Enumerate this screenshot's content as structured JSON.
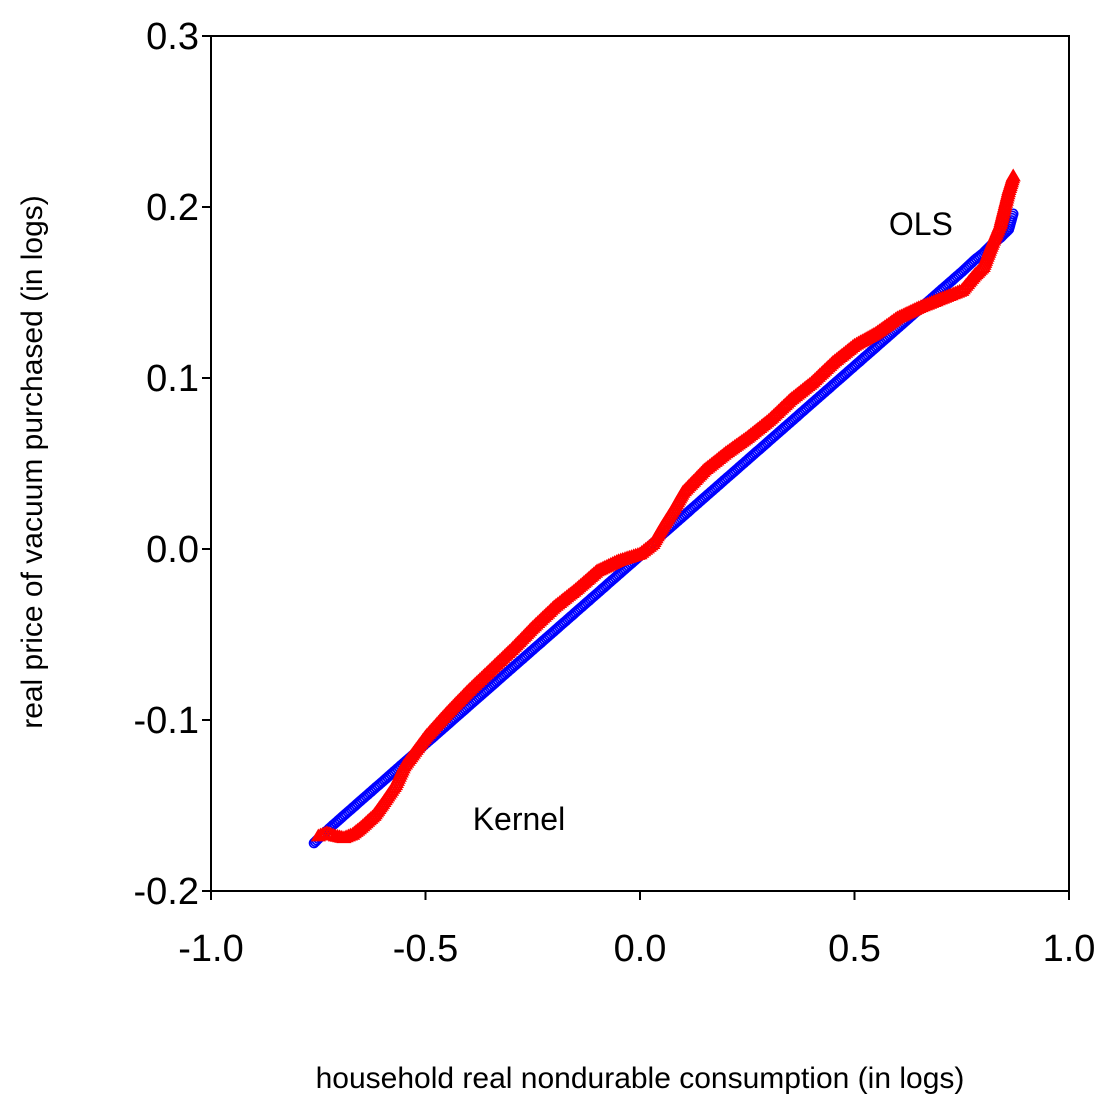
{
  "chart_data": {
    "type": "scatter",
    "title": "",
    "xlabel": "household real nondurable consumption (in logs)",
    "ylabel": "real price of vacuum purchased (in logs)",
    "xlim": [
      -1.0,
      1.0
    ],
    "ylim": [
      -0.2,
      0.3
    ],
    "xticks": [
      "-1.0",
      "-0.5",
      "0.0",
      "0.5",
      "1.0"
    ],
    "yticks": [
      "-0.2",
      "-0.1",
      "0.0",
      "0.1",
      "0.2",
      "0.3"
    ],
    "xtick_values": [
      -1.0,
      -0.5,
      0.0,
      0.5,
      1.0
    ],
    "ytick_values": [
      -0.2,
      -0.1,
      0.0,
      0.1,
      0.2,
      0.3
    ],
    "grid": false,
    "legend": "none",
    "series": [
      {
        "marker": "circle",
        "color": "#0000ff",
        "x": [
          -0.76,
          -0.74,
          -0.7,
          -0.65,
          -0.6,
          -0.55,
          -0.5,
          -0.45,
          -0.4,
          -0.35,
          -0.3,
          -0.25,
          -0.2,
          -0.15,
          -0.1,
          -0.05,
          0.0,
          0.05,
          0.1,
          0.15,
          0.2,
          0.25,
          0.3,
          0.35,
          0.4,
          0.45,
          0.5,
          0.55,
          0.6,
          0.65,
          0.7,
          0.75,
          0.78,
          0.8,
          0.82,
          0.84,
          0.86,
          0.87
        ],
        "y": [
          -0.172,
          -0.167,
          -0.158,
          -0.147,
          -0.136,
          -0.125,
          -0.114,
          -0.103,
          -0.092,
          -0.081,
          -0.07,
          -0.059,
          -0.048,
          -0.037,
          -0.026,
          -0.015,
          -0.004,
          0.008,
          0.019,
          0.03,
          0.041,
          0.052,
          0.063,
          0.074,
          0.085,
          0.096,
          0.107,
          0.118,
          0.129,
          0.14,
          0.151,
          0.162,
          0.169,
          0.173,
          0.178,
          0.182,
          0.187,
          0.196
        ]
      },
      {
        "marker": "triangle",
        "color": "#ff0000",
        "x": [
          -0.75,
          -0.73,
          -0.71,
          -0.69,
          -0.67,
          -0.65,
          -0.62,
          -0.6,
          -0.57,
          -0.55,
          -0.5,
          -0.45,
          -0.4,
          -0.35,
          -0.3,
          -0.25,
          -0.2,
          -0.15,
          -0.1,
          -0.05,
          0.0,
          0.03,
          0.05,
          0.08,
          0.1,
          0.15,
          0.2,
          0.25,
          0.3,
          0.35,
          0.4,
          0.45,
          0.5,
          0.55,
          0.6,
          0.65,
          0.7,
          0.75,
          0.78,
          0.8,
          0.82,
          0.84,
          0.85,
          0.86,
          0.87
        ],
        "y": [
          -0.168,
          -0.166,
          -0.168,
          -0.169,
          -0.167,
          -0.163,
          -0.156,
          -0.149,
          -0.138,
          -0.127,
          -0.11,
          -0.096,
          -0.083,
          -0.071,
          -0.059,
          -0.046,
          -0.034,
          -0.024,
          -0.013,
          -0.007,
          -0.003,
          0.003,
          0.012,
          0.024,
          0.033,
          0.046,
          0.056,
          0.065,
          0.075,
          0.087,
          0.097,
          0.109,
          0.119,
          0.126,
          0.135,
          0.141,
          0.146,
          0.151,
          0.16,
          0.165,
          0.178,
          0.19,
          0.2,
          0.21,
          0.218
        ]
      }
    ],
    "annotations": [
      {
        "text": "OLS",
        "x": 0.58,
        "y": 0.19
      },
      {
        "text": "Kernel",
        "x": -0.39,
        "y": -0.158
      }
    ]
  }
}
